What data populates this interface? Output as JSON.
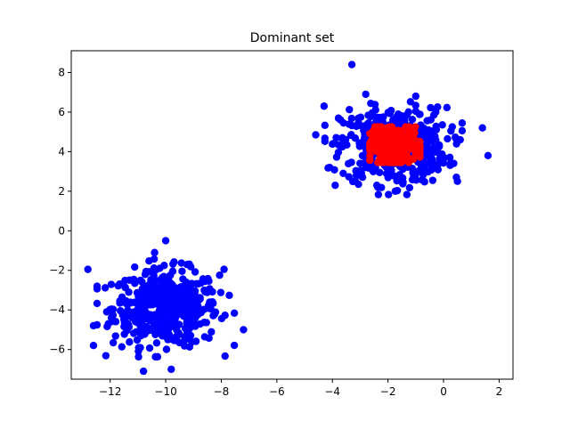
{
  "chart_data": {
    "type": "scatter",
    "title": "Dominant set",
    "xlabel": "",
    "ylabel": "",
    "xlim": [
      -13.4,
      2.5
    ],
    "ylim": [
      -7.5,
      9.1
    ],
    "xticks": [
      -12,
      -10,
      -8,
      -6,
      -4,
      -2,
      0,
      2
    ],
    "xtick_labels": [
      "−12",
      "−10",
      "−8",
      "−6",
      "−4",
      "−2",
      "0",
      "2"
    ],
    "yticks": [
      -6,
      -4,
      -2,
      0,
      2,
      4,
      6,
      8
    ],
    "ytick_labels": [
      "−6",
      "−4",
      "−2",
      "0",
      "2",
      "4",
      "6",
      "8"
    ],
    "grid": false,
    "legend": "none",
    "series": [
      {
        "color": "#0000ff",
        "clusters": [
          {
            "center": [
              -10.0,
              -3.9
            ],
            "spread": [
              0.95,
              0.95
            ],
            "count": 500
          },
          {
            "center": [
              -1.8,
              4.3
            ],
            "spread": [
              0.95,
              0.95
            ],
            "count": 500
          }
        ],
        "outliers": [
          [
            -12.8,
            -1.95
          ],
          [
            -12.6,
            -4.8
          ],
          [
            -12.6,
            -5.8
          ],
          [
            -7.2,
            -5.0
          ],
          [
            -7.9,
            -1.95
          ],
          [
            -9.8,
            -7.0
          ],
          [
            -10.8,
            -7.1
          ],
          [
            -10.0,
            -0.5
          ],
          [
            -10.4,
            -1.1
          ],
          [
            -3.3,
            8.4
          ],
          [
            1.6,
            3.8
          ],
          [
            1.4,
            5.2
          ],
          [
            0.6,
            4.6
          ],
          [
            -4.6,
            4.85
          ],
          [
            -4.3,
            6.3
          ],
          [
            -3.9,
            2.3
          ],
          [
            -4.1,
            3.2
          ],
          [
            -2.8,
            6.9
          ],
          [
            -1.0,
            6.8
          ],
          [
            0.5,
            2.5
          ]
        ]
      },
      {
        "color": "#ff0000",
        "clusters": [
          {
            "center": [
              -1.75,
              4.35
            ],
            "spread": [
              0.45,
              0.45
            ],
            "count": 300
          }
        ],
        "outliers": []
      }
    ]
  }
}
